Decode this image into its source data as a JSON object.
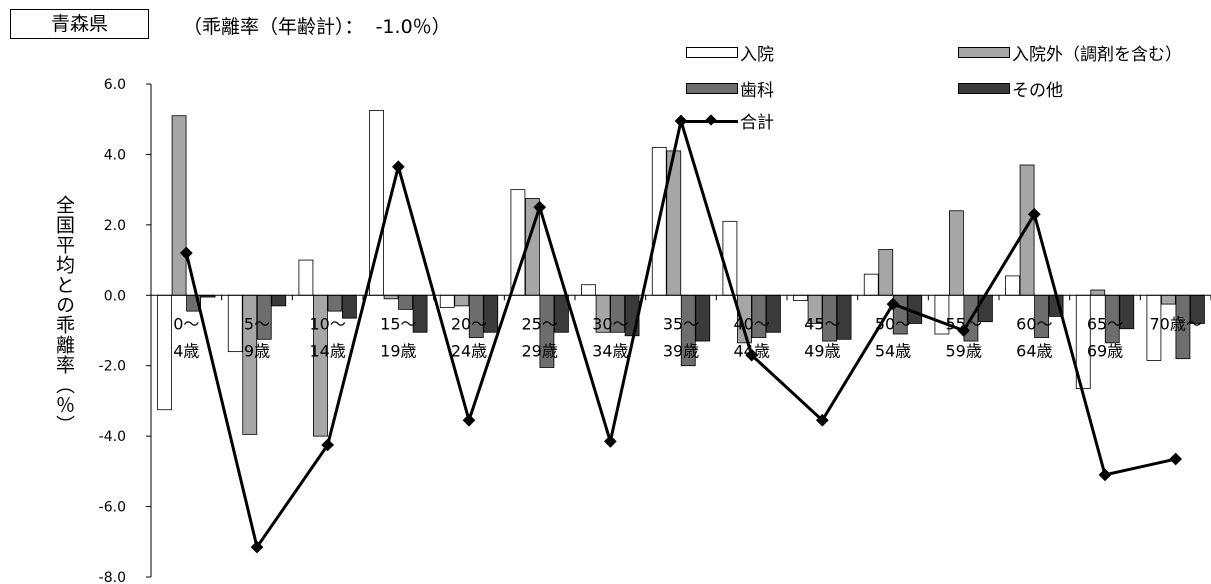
{
  "header": {
    "prefecture": "青森県",
    "subtitle": "（乖離率（年齢計）：  -1.0％）"
  },
  "ylabel": "全国平均との乖離率（％）",
  "colors": {
    "inpatient": "#ffffff",
    "outpatient": "#a6a6a6",
    "dental": "#6e6e6e",
    "other": "#3a3a3a",
    "total": "#000000"
  },
  "chart_data": {
    "type": "bar",
    "categories": [
      "0～\n4歳",
      "5～\n9歳",
      "10～\n14歳",
      "15～\n19歳",
      "20～\n24歳",
      "25～\n29歳",
      "30～\n34歳",
      "35～\n39歳",
      "40～\n44歳",
      "45～\n49歳",
      "50～\n54歳",
      "55～\n59歳",
      "60～\n64歳",
      "65～\n69歳",
      "70歳～"
    ],
    "ylim": [
      -8.0,
      6.0
    ],
    "yticks": [
      "6.0",
      "4.0",
      "2.0",
      "0.0",
      "-2.0",
      "-4.0",
      "-6.0",
      "-8.0"
    ],
    "series": [
      {
        "name": "入院",
        "type": "bar",
        "values": [
          -3.25,
          -1.6,
          1.0,
          5.25,
          -0.35,
          3.0,
          0.3,
          4.2,
          2.1,
          -0.15,
          0.6,
          -1.1,
          0.55,
          -2.65,
          -1.85
        ]
      },
      {
        "name": "入院外（調剤を含む）",
        "type": "bar",
        "values": [
          5.1,
          -3.95,
          -4.0,
          -0.1,
          -0.3,
          2.75,
          -1.05,
          4.1,
          -1.35,
          -0.8,
          1.3,
          2.4,
          3.7,
          0.15,
          -0.25
        ]
      },
      {
        "name": "歯科",
        "type": "bar",
        "values": [
          -0.45,
          -1.25,
          -0.45,
          -0.4,
          -1.2,
          -2.05,
          -1.05,
          -2.0,
          -1.2,
          -1.3,
          -1.1,
          -1.3,
          -1.2,
          -1.35,
          -1.8
        ]
      },
      {
        "name": "その他",
        "type": "bar",
        "values": [
          -0.05,
          -0.3,
          -0.65,
          -1.05,
          -1.05,
          -1.05,
          -1.15,
          -1.3,
          -1.05,
          -1.25,
          -0.8,
          -0.75,
          -0.6,
          -0.95,
          -0.8
        ]
      },
      {
        "name": "合計",
        "type": "line",
        "values": [
          1.2,
          -7.15,
          -4.25,
          3.65,
          -3.55,
          2.5,
          -4.15,
          4.95,
          -1.7,
          -3.55,
          -0.25,
          -1.0,
          2.3,
          -5.1,
          -4.65
        ]
      }
    ]
  }
}
